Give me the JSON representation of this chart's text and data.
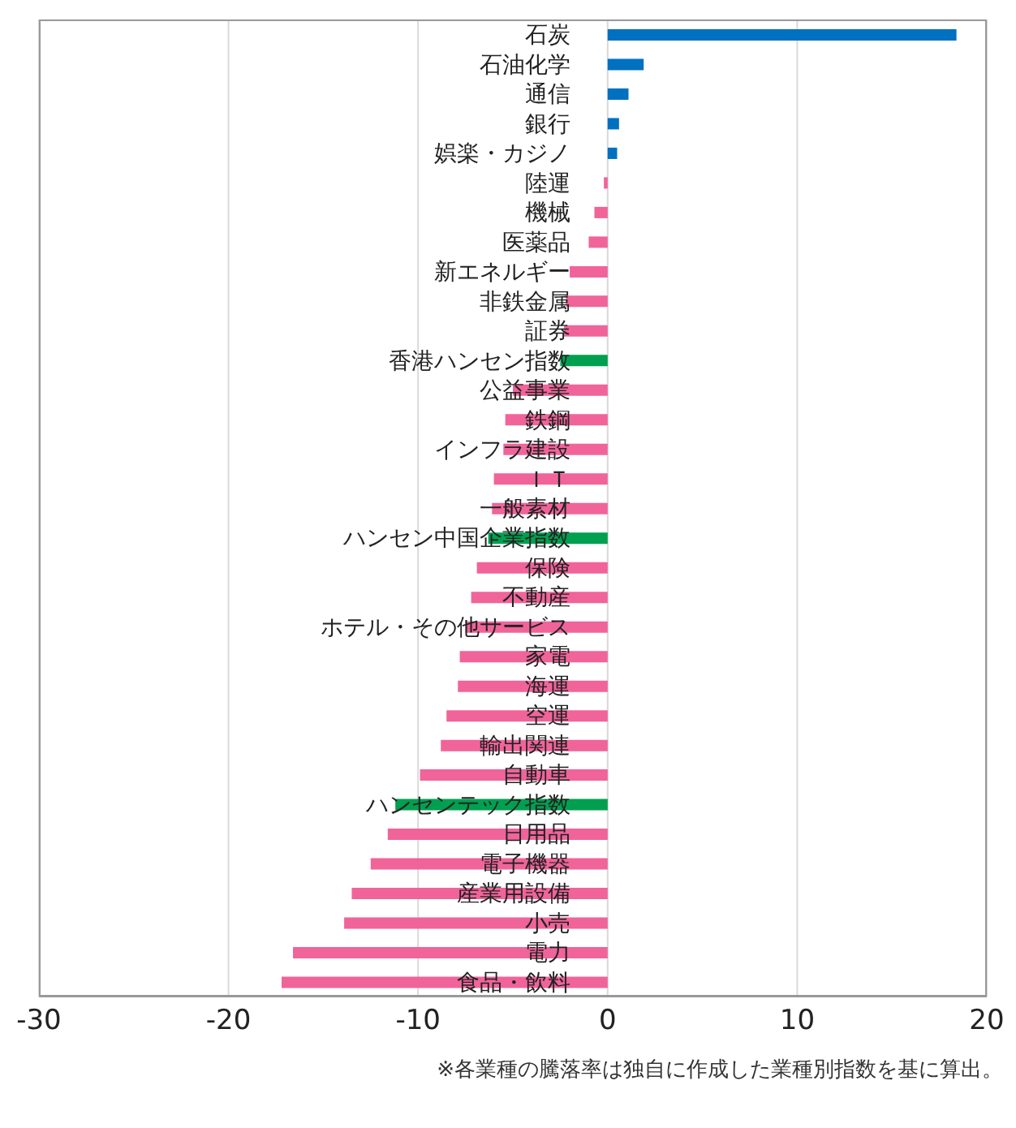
{
  "chart_data": {
    "type": "bar",
    "orientation": "horizontal",
    "categories": [
      "石炭",
      "石油化学",
      "通信",
      "銀行",
      "娯楽・カジノ",
      "陸運",
      "機械",
      "医薬品",
      "新エネルギー",
      "非鉄金属",
      "証券",
      "香港ハンセン指数",
      "公益事業",
      "鉄鋼",
      "インフラ建設",
      "ＩＴ",
      "一般素材",
      "ハンセン中国企業指数",
      "保険",
      "不動産",
      "ホテル・その他サービス",
      "家電",
      "海運",
      "空運",
      "輸出関連",
      "自動車",
      "ハンセンテック指数",
      "日用品",
      "電子機器",
      "産業用設備",
      "小売",
      "電力",
      "食品・飲料"
    ],
    "values": [
      18.4,
      1.9,
      1.1,
      0.6,
      0.5,
      -0.2,
      -0.7,
      -1.0,
      -2.0,
      -2.2,
      -2.3,
      -2.5,
      -5.0,
      -5.4,
      -5.5,
      -6.0,
      -6.1,
      -6.3,
      -6.9,
      -7.2,
      -7.5,
      -7.8,
      -7.9,
      -8.5,
      -8.8,
      -9.9,
      -11.2,
      -11.6,
      -12.5,
      -13.5,
      -13.9,
      -16.6,
      -17.2
    ],
    "colors": [
      "#0070c0",
      "#0070c0",
      "#0070c0",
      "#0070c0",
      "#0070c0",
      "#f0649a",
      "#f0649a",
      "#f0649a",
      "#f0649a",
      "#f0649a",
      "#f0649a",
      "#00a050",
      "#f0649a",
      "#f0649a",
      "#f0649a",
      "#f0649a",
      "#f0649a",
      "#00a050",
      "#f0649a",
      "#f0649a",
      "#f0649a",
      "#f0649a",
      "#f0649a",
      "#f0649a",
      "#f0649a",
      "#f0649a",
      "#00a050",
      "#f0649a",
      "#f0649a",
      "#f0649a",
      "#f0649a",
      "#f0649a",
      "#f0649a"
    ],
    "xlim": [
      -30,
      20
    ],
    "xticks": [
      -30,
      -20,
      -10,
      0,
      10,
      20
    ],
    "grid": "x",
    "annotations": [
      "※各業種の騰落率は独自に作成した業種別指数を基に算出。"
    ]
  }
}
